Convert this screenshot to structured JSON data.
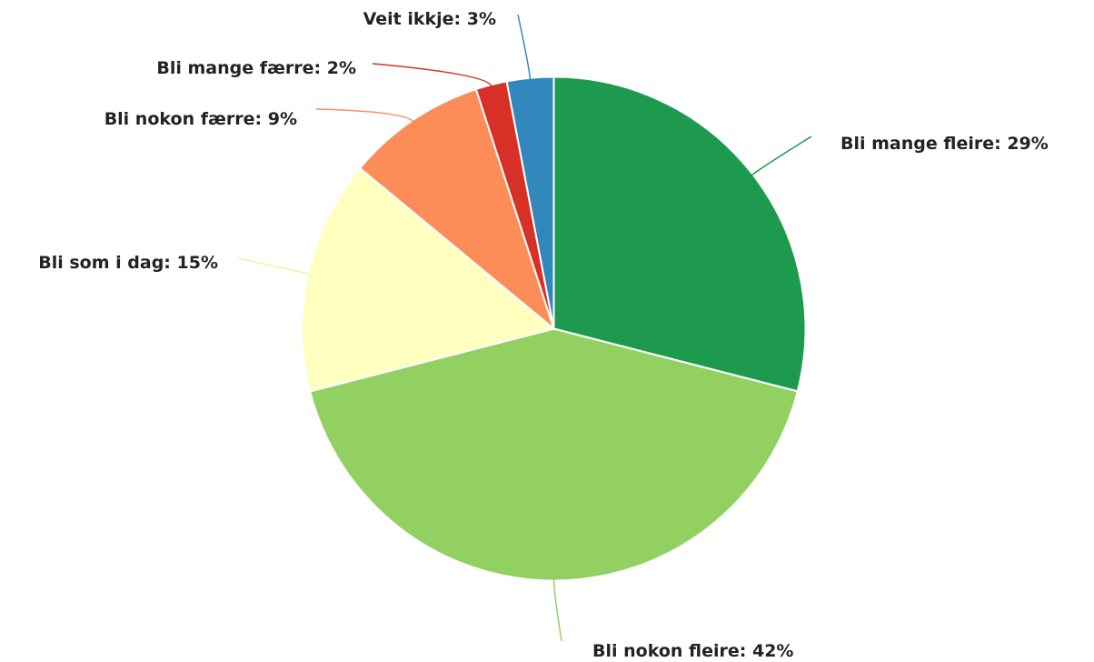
{
  "chart_data": {
    "type": "pie",
    "categories": [
      "Bli mange fleire",
      "Bli nokon fleire",
      "Bli som i dag",
      "Bli nokon færre",
      "Bli mange færre",
      "Veit ikkje"
    ],
    "values": [
      29,
      42,
      15,
      9,
      2,
      3
    ],
    "value_labels": [
      "29%",
      "42%",
      "15%",
      "9%",
      "2%",
      "3%"
    ],
    "colors": [
      "#1e9a4f",
      "#93d062",
      "#ffffc0",
      "#fc8d59",
      "#d73027",
      "#3288bd"
    ]
  }
}
